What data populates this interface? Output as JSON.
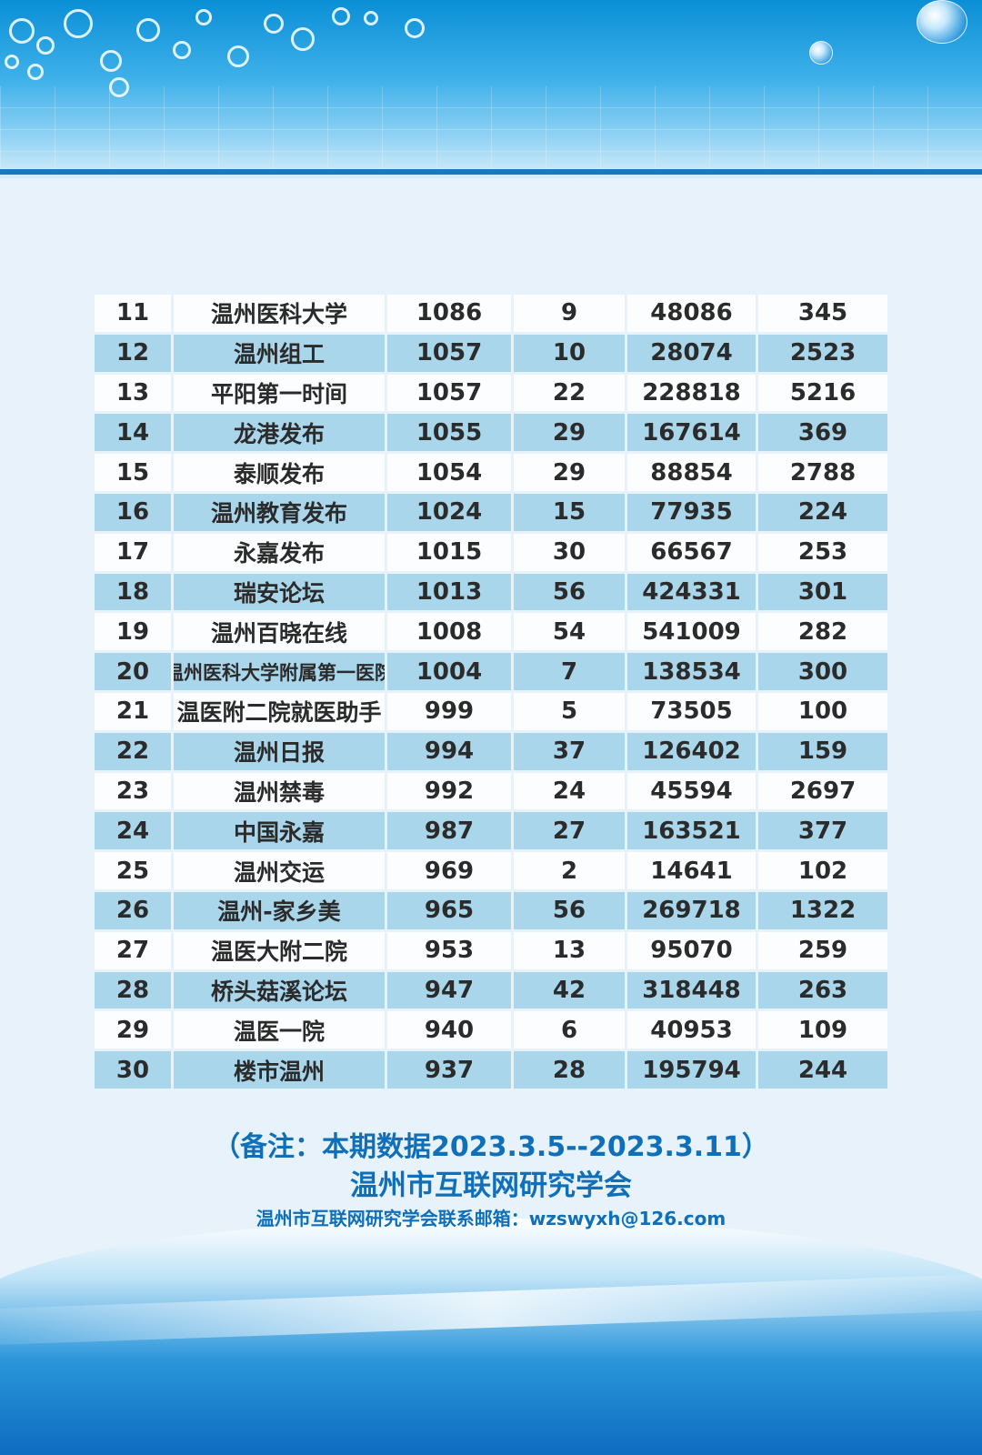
{
  "rows": [
    {
      "rank": "11",
      "name": "温州医科大学",
      "a": "1086",
      "b": "9",
      "c": "48086",
      "d": "345"
    },
    {
      "rank": "12",
      "name": "温州组工",
      "a": "1057",
      "b": "10",
      "c": "28074",
      "d": "2523"
    },
    {
      "rank": "13",
      "name": "平阳第一时间",
      "a": "1057",
      "b": "22",
      "c": "228818",
      "d": "5216"
    },
    {
      "rank": "14",
      "name": "龙港发布",
      "a": "1055",
      "b": "29",
      "c": "167614",
      "d": "369"
    },
    {
      "rank": "15",
      "name": "泰顺发布",
      "a": "1054",
      "b": "29",
      "c": "88854",
      "d": "2788"
    },
    {
      "rank": "16",
      "name": "温州教育发布",
      "a": "1024",
      "b": "15",
      "c": "77935",
      "d": "224"
    },
    {
      "rank": "17",
      "name": "永嘉发布",
      "a": "1015",
      "b": "30",
      "c": "66567",
      "d": "253"
    },
    {
      "rank": "18",
      "name": "瑞安论坛",
      "a": "1013",
      "b": "56",
      "c": "424331",
      "d": "301"
    },
    {
      "rank": "19",
      "name": "温州百晓在线",
      "a": "1008",
      "b": "54",
      "c": "541009",
      "d": "282"
    },
    {
      "rank": "20",
      "name": "温州医科大学附属第一医院",
      "a": "1004",
      "b": "7",
      "c": "138534",
      "d": "300"
    },
    {
      "rank": "21",
      "name": "温医附二院就医助手",
      "a": "999",
      "b": "5",
      "c": "73505",
      "d": "100"
    },
    {
      "rank": "22",
      "name": "温州日报",
      "a": "994",
      "b": "37",
      "c": "126402",
      "d": "159"
    },
    {
      "rank": "23",
      "name": "温州禁毒",
      "a": "992",
      "b": "24",
      "c": "45594",
      "d": "2697"
    },
    {
      "rank": "24",
      "name": "中国永嘉",
      "a": "987",
      "b": "27",
      "c": "163521",
      "d": "377"
    },
    {
      "rank": "25",
      "name": "温州交运",
      "a": "969",
      "b": "2",
      "c": "14641",
      "d": "102"
    },
    {
      "rank": "26",
      "name": "温州-家乡美",
      "a": "965",
      "b": "56",
      "c": "269718",
      "d": "1322"
    },
    {
      "rank": "27",
      "name": "温医大附二院",
      "a": "953",
      "b": "13",
      "c": "95070",
      "d": "259"
    },
    {
      "rank": "28",
      "name": "桥头菇溪论坛",
      "a": "947",
      "b": "42",
      "c": "318448",
      "d": "263"
    },
    {
      "rank": "29",
      "name": "温医一院",
      "a": "940",
      "b": "6",
      "c": "40953",
      "d": "109"
    },
    {
      "rank": "30",
      "name": "楼市温州",
      "a": "937",
      "b": "28",
      "c": "195794",
      "d": "244"
    }
  ],
  "footer": {
    "note": "（备注：本期数据2023.3.5--2023.3.11）",
    "org": "温州市互联网研究学会",
    "contact": "温州市互联网研究学会联系邮箱：wzswyxh@126.com"
  },
  "colors": {
    "row_light": "#fbfdfe",
    "row_blue": "#a9d6ea",
    "note_text": "#0f6fb8"
  }
}
